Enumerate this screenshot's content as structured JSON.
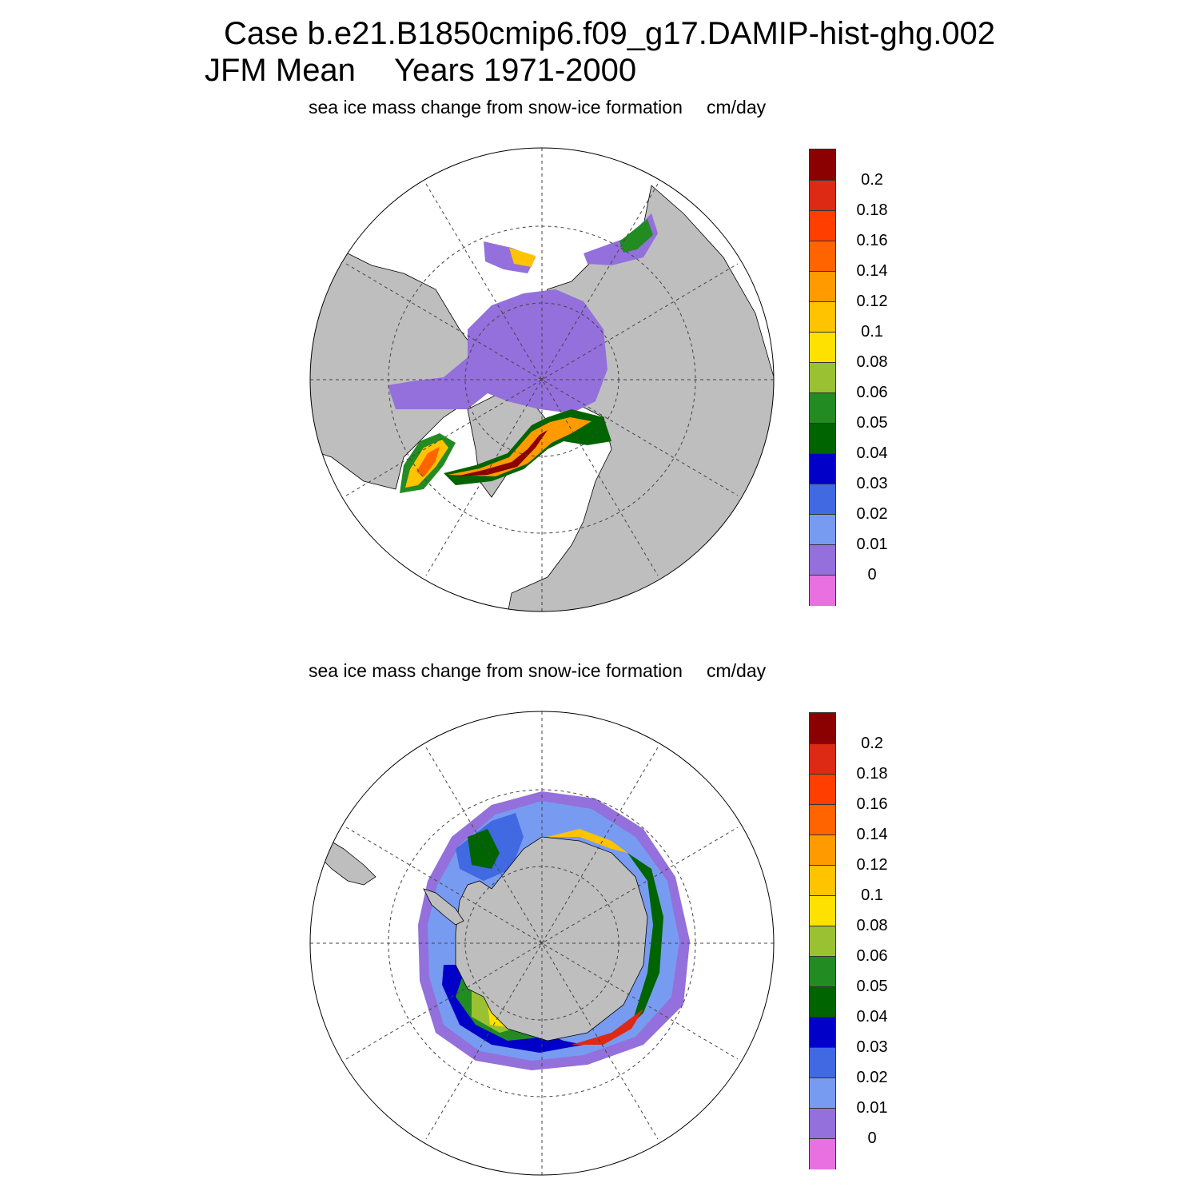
{
  "header": {
    "case_line": "Case b.e21.B1850cmip6.f09_g17.DAMIP-hist-ghg.002",
    "season": "JFM Mean",
    "years": "Years 1971-2000"
  },
  "panels": [
    {
      "id": "north",
      "subtitle": "sea ice mass change from snow-ice formation",
      "units": "cm/day"
    },
    {
      "id": "south",
      "subtitle": "sea ice mass change from snow-ice formation",
      "units": "cm/day"
    }
  ],
  "colorbar": {
    "labels": [
      "0.2",
      "0.18",
      "0.16",
      "0.14",
      "0.12",
      "0.1",
      "0.08",
      "0.06",
      "0.05",
      "0.04",
      "0.03",
      "0.02",
      "0.01",
      "0"
    ],
    "colors": [
      "#8b0000",
      "#dc2a14",
      "#ff3e00",
      "#ff6400",
      "#ff9a00",
      "#ffc300",
      "#ffe100",
      "#9ac132",
      "#228b22",
      "#006400",
      "#0000c8",
      "#4169e1",
      "#789bf2",
      "#9370db",
      "#e870e0"
    ]
  },
  "colors": {
    "land": "#bebebe",
    "ocean": "#ffffff",
    "grid": "#444444"
  }
}
